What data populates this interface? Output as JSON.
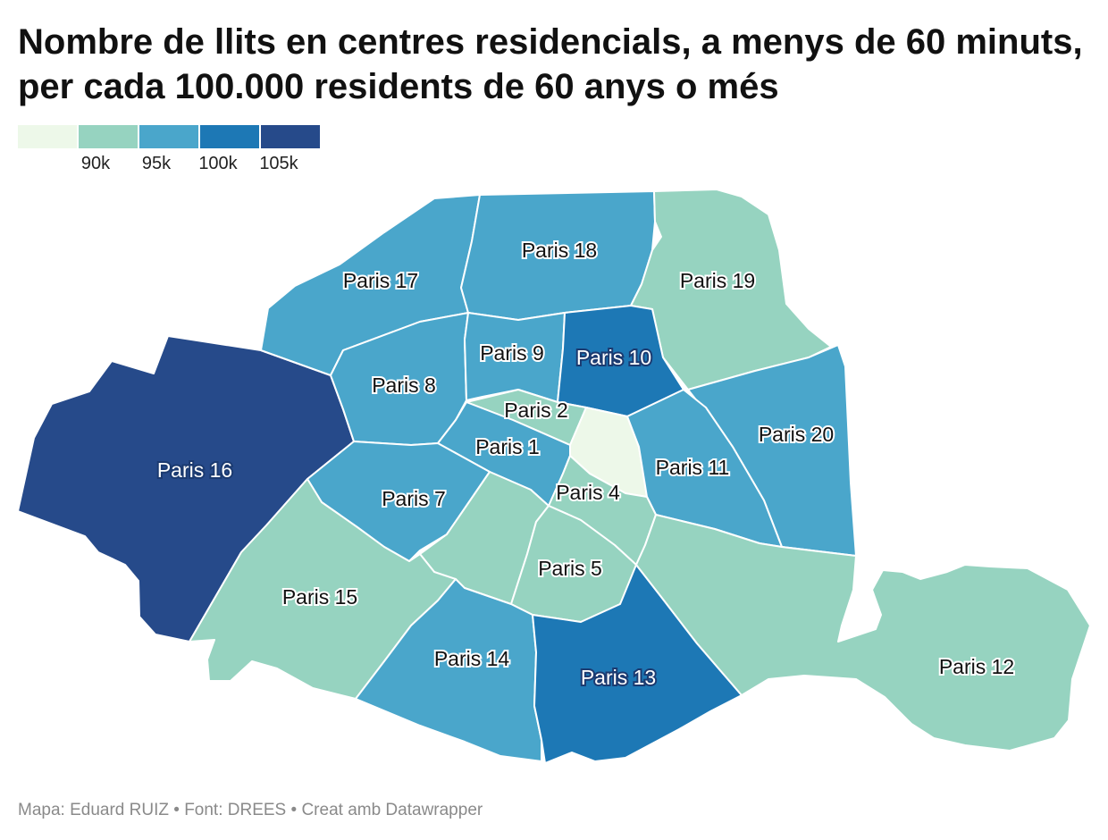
{
  "title": "Nombre de llits en centres residencials, a menys de 60 minuts, per cada 100.000 residents de 60 anys o més",
  "legend": {
    "colors": [
      "#edf8e9",
      "#96d3c0",
      "#4aa6cb",
      "#1d78b5",
      "#264a8a"
    ],
    "ticks": [
      "90k",
      "95k",
      "100k",
      "105k"
    ]
  },
  "footer": {
    "map_credit": "Mapa: Eduard RUIZ",
    "source": "Font: DREES",
    "tool": "Creat amb Datawrapper",
    "separator": "•"
  },
  "districts": [
    {
      "id": "16",
      "label": "Paris 16",
      "color_class": 4
    },
    {
      "id": "17",
      "label": "Paris 17",
      "color_class": 2
    },
    {
      "id": "18",
      "label": "Paris 18",
      "color_class": 2
    },
    {
      "id": "19",
      "label": "Paris 19",
      "color_class": 1
    },
    {
      "id": "20",
      "label": "Paris 20",
      "color_class": 2
    },
    {
      "id": "8",
      "label": "Paris 8",
      "color_class": 2
    },
    {
      "id": "9",
      "label": "Paris 9",
      "color_class": 2
    },
    {
      "id": "10",
      "label": "Paris 10",
      "color_class": 3
    },
    {
      "id": "2",
      "label": "Paris 2",
      "color_class": 1
    },
    {
      "id": "3",
      "label": "",
      "color_class": 0
    },
    {
      "id": "1",
      "label": "Paris 1",
      "color_class": 2
    },
    {
      "id": "11",
      "label": "Paris 11",
      "color_class": 2
    },
    {
      "id": "4",
      "label": "Paris 4",
      "color_class": 1
    },
    {
      "id": "7",
      "label": "Paris 7",
      "color_class": 2
    },
    {
      "id": "6",
      "label": "",
      "color_class": 1
    },
    {
      "id": "5",
      "label": "Paris 5",
      "color_class": 1
    },
    {
      "id": "15",
      "label": "Paris 15",
      "color_class": 1
    },
    {
      "id": "14",
      "label": "Paris 14",
      "color_class": 2
    },
    {
      "id": "13",
      "label": "Paris 13",
      "color_class": 3
    },
    {
      "id": "12",
      "label": "Paris 12",
      "color_class": 1
    }
  ]
}
